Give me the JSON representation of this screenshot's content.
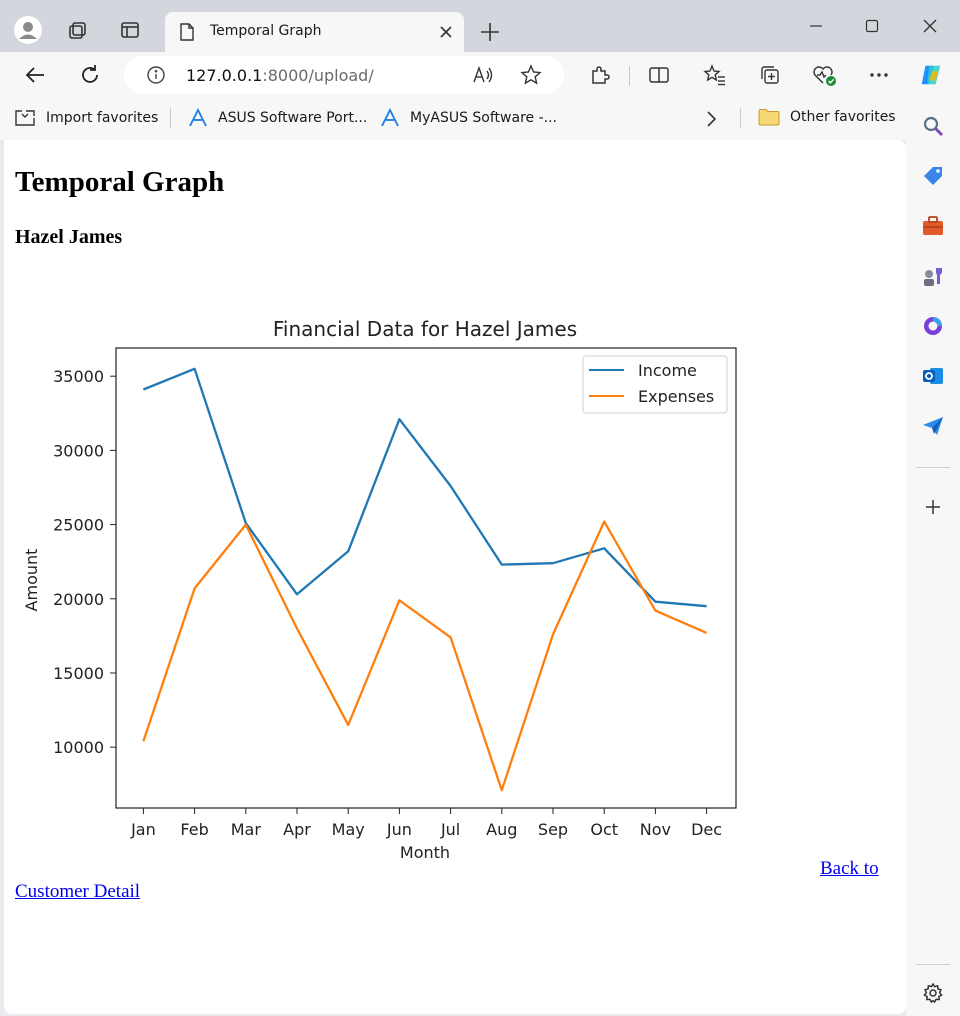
{
  "browser": {
    "tab_title": "Temporal Graph",
    "url_host": "127.0.0.1",
    "url_rest": ":8000/upload/",
    "favorites": [
      {
        "label": "Import favorites",
        "icon": "import-icon"
      },
      {
        "label": "ASUS Software Port...",
        "icon": "asus-icon"
      },
      {
        "label": "MyASUS Software -...",
        "icon": "asus-icon"
      }
    ],
    "other_favorites": "Other favorites"
  },
  "page": {
    "title": "Temporal Graph",
    "customer_name": "Hazel James",
    "back_link_part1": "Back to",
    "back_link_part2": "Customer Detail"
  },
  "chart_data": {
    "type": "line",
    "title": "Financial Data for Hazel James",
    "xlabel": "Month",
    "ylabel": "Amount",
    "categories": [
      "Jan",
      "Feb",
      "Mar",
      "Apr",
      "May",
      "Jun",
      "Jul",
      "Aug",
      "Sep",
      "Oct",
      "Nov",
      "Dec"
    ],
    "ylim": [
      5900,
      36900
    ],
    "yticks": [
      10000,
      15000,
      20000,
      25000,
      30000,
      35000
    ],
    "legend_position": "top-right",
    "grid": false,
    "series": [
      {
        "name": "Income",
        "color": "#1f77b4",
        "values": [
          34100,
          35500,
          25100,
          20300,
          23200,
          32100,
          27600,
          22300,
          22400,
          23400,
          19800,
          19500
        ]
      },
      {
        "name": "Expenses",
        "color": "#ff7f0e",
        "values": [
          10400,
          20700,
          25000,
          18000,
          11500,
          19900,
          17400,
          7100,
          17600,
          25200,
          19200,
          17700
        ]
      }
    ]
  }
}
